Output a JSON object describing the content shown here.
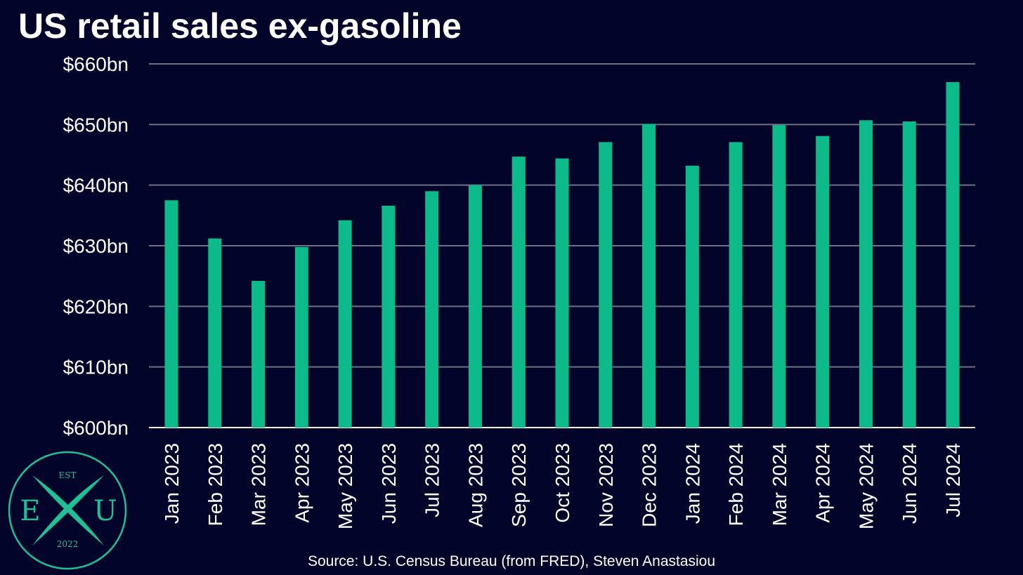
{
  "colors": {
    "background": "#03042a",
    "bar": "#0dbb8a",
    "grid": "#6f7083",
    "text": "#ffffff",
    "logo_accent": "#1fc095"
  },
  "logo": {
    "top": "EST",
    "left_letter": "E",
    "right_letter": "U",
    "year": "2022"
  },
  "source": "Source: U.S. Census Bureau (from FRED), Steven Anastasiou",
  "chart_data": {
    "type": "bar",
    "title": "US retail sales ex-gasoline",
    "xlabel": "",
    "ylabel": "",
    "ylim": [
      600,
      660
    ],
    "yticks": [
      600,
      610,
      620,
      630,
      640,
      650,
      660
    ],
    "ytick_labels": [
      "$600bn",
      "$610bn",
      "$620bn",
      "$630bn",
      "$640bn",
      "$650bn",
      "$660bn"
    ],
    "grid": true,
    "categories": [
      "Jan 2023",
      "Feb 2023",
      "Mar 2023",
      "Apr 2023",
      "May 2023",
      "Jun 2023",
      "Jul 2023",
      "Aug 2023",
      "Sep 2023",
      "Oct 2023",
      "Nov 2023",
      "Dec 2023",
      "Jan 2024",
      "Feb 2024",
      "Mar 2024",
      "Apr 2024",
      "May 2024",
      "Jun 2024",
      "Jul 2024"
    ],
    "values": [
      637.5,
      631.2,
      624.2,
      629.8,
      634.2,
      636.6,
      639.0,
      640.0,
      644.7,
      644.4,
      647.1,
      650.1,
      643.2,
      647.1,
      649.9,
      648.1,
      650.7,
      650.5,
      657.0
    ]
  }
}
